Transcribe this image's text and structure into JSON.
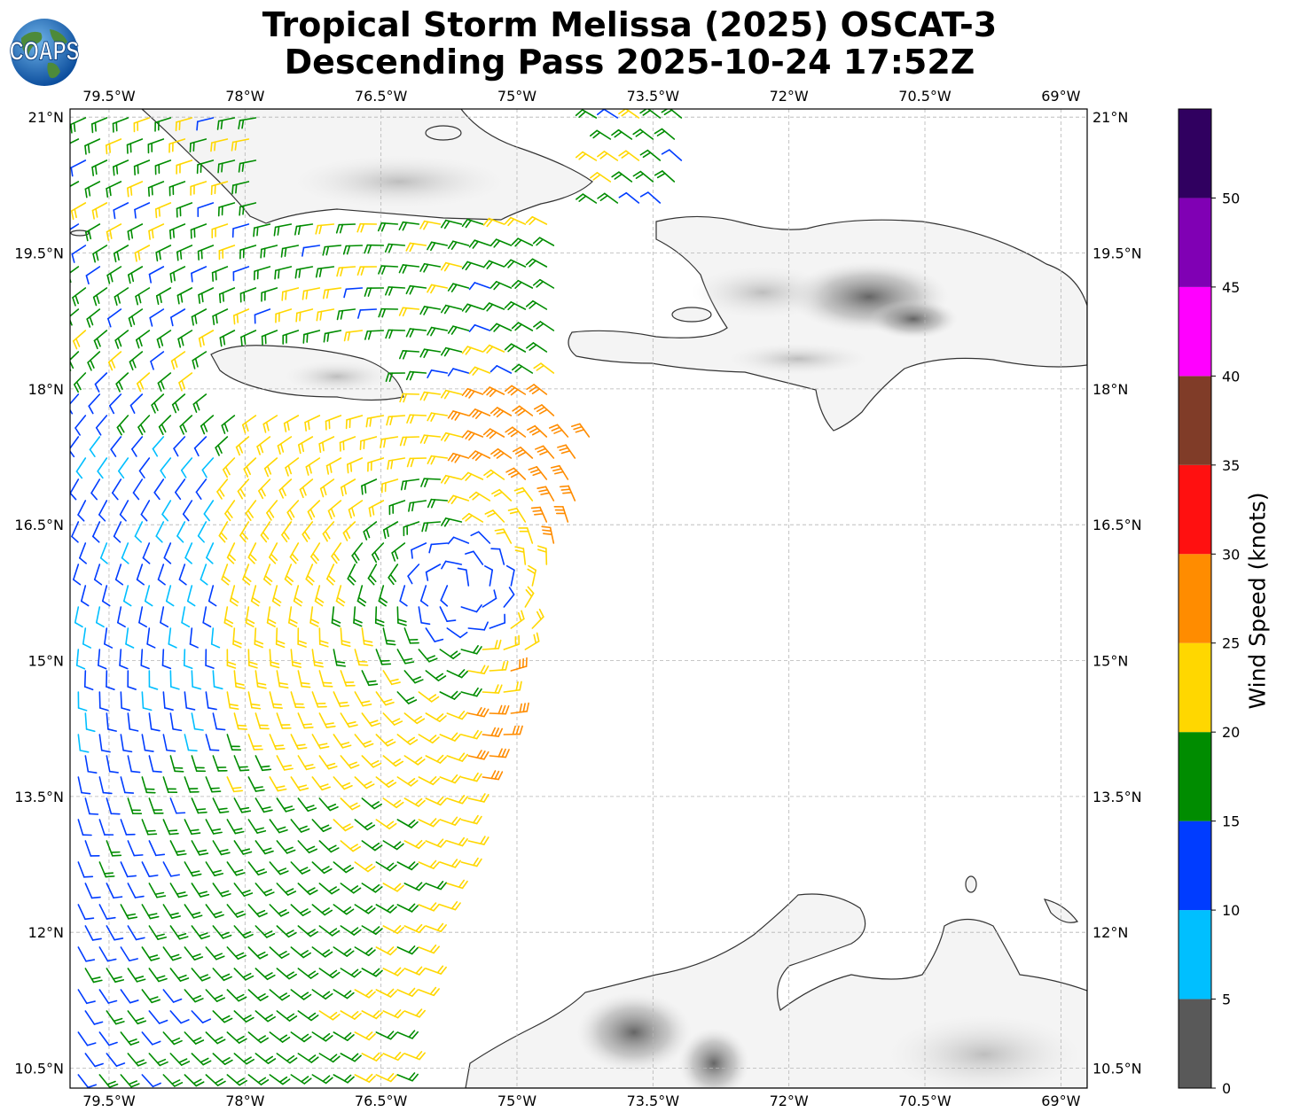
{
  "title_line1": "Tropical Storm Melissa (2025) OSCAT-3",
  "title_line2": "Descending Pass 2025-10-24 17:52Z",
  "logo_text": "COAPS",
  "colors": {
    "land_outline": "#333333",
    "grid": "#b5b5b5"
  },
  "map": {
    "lon_ticks": [
      "79.5°W",
      "78°W",
      "76.5°W",
      "75°W",
      "73.5°W",
      "72°W",
      "70.5°W",
      "69°W"
    ],
    "lon_values": [
      -79.5,
      -78,
      -76.5,
      -75,
      -73.5,
      -72,
      -70.5,
      -69
    ],
    "lat_ticks": [
      "21°N",
      "19.5°N",
      "18°N",
      "16.5°N",
      "15°N",
      "13.5°N",
      "12°N",
      "10.5°N"
    ],
    "lat_values": [
      21,
      19.5,
      18,
      16.5,
      15,
      13.5,
      12,
      10.5
    ],
    "extent": {
      "lon_min": -79.93,
      "lon_max": -68.71,
      "lat_min": 10.28,
      "lat_max": 21.09
    },
    "storm_center": {
      "lon": -75.6,
      "lat": 15.8
    }
  },
  "colorbar": {
    "label": "Wind Speed (knots)",
    "tick_labels": [
      "0",
      "5",
      "10",
      "15",
      "20",
      "25",
      "30",
      "35",
      "40",
      "45",
      "50"
    ],
    "bins": [
      {
        "from": 0,
        "to": 5,
        "color": "#595959"
      },
      {
        "from": 5,
        "to": 10,
        "color": "#00bfff"
      },
      {
        "from": 10,
        "to": 15,
        "color": "#003cff"
      },
      {
        "from": 15,
        "to": 20,
        "color": "#008c00"
      },
      {
        "from": 20,
        "to": 25,
        "color": "#ffd700"
      },
      {
        "from": 25,
        "to": 30,
        "color": "#ff8c00"
      },
      {
        "from": 30,
        "to": 35,
        "color": "#ff1010"
      },
      {
        "from": 35,
        "to": 40,
        "color": "#803c28"
      },
      {
        "from": 40,
        "to": 45,
        "color": "#ff00ff"
      },
      {
        "from": 45,
        "to": 50,
        "color": "#8000b4"
      },
      {
        "from": 50,
        "to": 55,
        "color": "#300060"
      }
    ]
  }
}
